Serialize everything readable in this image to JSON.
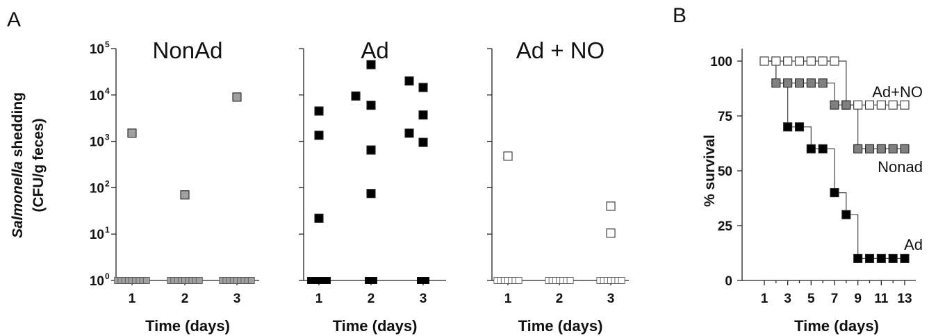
{
  "panel_letters": [
    "A",
    "B"
  ],
  "chart_data": [
    {
      "type": "scatter",
      "title": "NonAd",
      "xlabel": "Time (days)",
      "ylabel_italic": "Salmonella",
      "ylabel_rest": " shedding",
      "ylabel_line2": "(CFU/g feces)",
      "yscale": "log",
      "ylim": [
        1,
        100000
      ],
      "yticks": [
        {
          "base": "10",
          "exp": "5",
          "value": 100000
        },
        {
          "base": "10",
          "exp": "4",
          "value": 10000
        },
        {
          "base": "10",
          "exp": "3",
          "value": 1000
        },
        {
          "base": "10",
          "exp": "2",
          "value": 100
        },
        {
          "base": "10",
          "exp": "1",
          "value": 10
        },
        {
          "base": "10",
          "exp": "0",
          "value": 1
        }
      ],
      "categories": [
        "1",
        "2",
        "3"
      ],
      "marker_color": "#a0a0a0",
      "points": [
        {
          "day": 1,
          "value": 1500
        },
        {
          "day": 2,
          "value": 70
        },
        {
          "day": 3,
          "value": 9000
        }
      ],
      "baseline_counts": [
        9,
        9,
        9
      ]
    },
    {
      "type": "scatter",
      "title": "Ad",
      "xlabel": "Time (days)",
      "yscale": "log",
      "ylim": [
        1,
        100000
      ],
      "categories": [
        "1",
        "2",
        "3"
      ],
      "marker_color": "#000000",
      "points": [
        {
          "day": 1,
          "value": 4500
        },
        {
          "day": 1,
          "value": 1350
        },
        {
          "day": 1,
          "value": 22
        },
        {
          "day": 2,
          "value": 45000
        },
        {
          "day": 2,
          "value": 9500
        },
        {
          "day": 2,
          "value": 6000
        },
        {
          "day": 2,
          "value": 650
        },
        {
          "day": 2,
          "value": 75
        },
        {
          "day": 3,
          "value": 20000
        },
        {
          "day": 3,
          "value": 14500
        },
        {
          "day": 3,
          "value": 3700
        },
        {
          "day": 3,
          "value": 1500
        },
        {
          "day": 3,
          "value": 950
        }
      ],
      "baseline_counts": [
        4,
        2,
        2
      ]
    },
    {
      "type": "scatter",
      "title": "Ad + NO",
      "xlabel": "Time (days)",
      "yscale": "log",
      "ylim": [
        1,
        100000
      ],
      "categories": [
        "1",
        "2",
        "3"
      ],
      "marker_color": "#ffffff",
      "points": [
        {
          "day": 1,
          "value": 480
        },
        {
          "day": 3,
          "value": 40
        },
        {
          "day": 3,
          "value": 10.5
        }
      ],
      "baseline_counts": [
        7,
        7,
        7
      ]
    },
    {
      "type": "line",
      "subtype": "survival-step",
      "xlabel": "Time  (days)",
      "ylabel": "% survival",
      "xlim": [
        1,
        13
      ],
      "ylim": [
        0,
        100
      ],
      "xticks": [
        1,
        3,
        5,
        7,
        9,
        11,
        13
      ],
      "yticks": [
        0,
        25,
        50,
        75,
        100
      ],
      "series": [
        {
          "name": "Ad+NO",
          "color": "#ffffff",
          "x": [
            1,
            2,
            3,
            4,
            5,
            6,
            7,
            8,
            9,
            10,
            11,
            12,
            13
          ],
          "y": [
            100,
            100,
            100,
            100,
            100,
            100,
            100,
            80,
            80,
            80,
            80,
            80,
            80
          ],
          "markers_x": [
            1,
            2,
            3,
            4,
            5,
            6,
            7,
            8,
            9,
            10,
            11,
            12,
            13
          ],
          "markers_y": [
            100,
            100,
            100,
            100,
            100,
            100,
            100,
            80,
            80,
            80,
            80,
            80,
            80
          ]
        },
        {
          "name": "Nonad",
          "color": "#808080",
          "x": [
            1,
            2,
            3,
            4,
            5,
            6,
            7,
            8,
            9,
            10,
            11,
            12,
            13
          ],
          "y": [
            100,
            90,
            90,
            90,
            90,
            90,
            80,
            80,
            60,
            60,
            60,
            60,
            60
          ],
          "markers_x": [
            2,
            3,
            4,
            5,
            6,
            7,
            8,
            9,
            10,
            11,
            12,
            13
          ],
          "markers_y": [
            90,
            90,
            90,
            90,
            90,
            80,
            80,
            60,
            60,
            60,
            60,
            60
          ]
        },
        {
          "name": "Ad",
          "color": "#000000",
          "x": [
            1,
            2,
            3,
            4,
            5,
            6,
            7,
            8,
            9,
            10,
            11,
            12,
            13
          ],
          "y": [
            100,
            90,
            70,
            70,
            60,
            60,
            40,
            30,
            10,
            10,
            10,
            10,
            10
          ],
          "markers_x": [
            3,
            4,
            5,
            6,
            7,
            8,
            9,
            10,
            11,
            12,
            13
          ],
          "markers_y": [
            70,
            70,
            60,
            60,
            40,
            30,
            10,
            10,
            10,
            10,
            10
          ]
        }
      ]
    }
  ]
}
